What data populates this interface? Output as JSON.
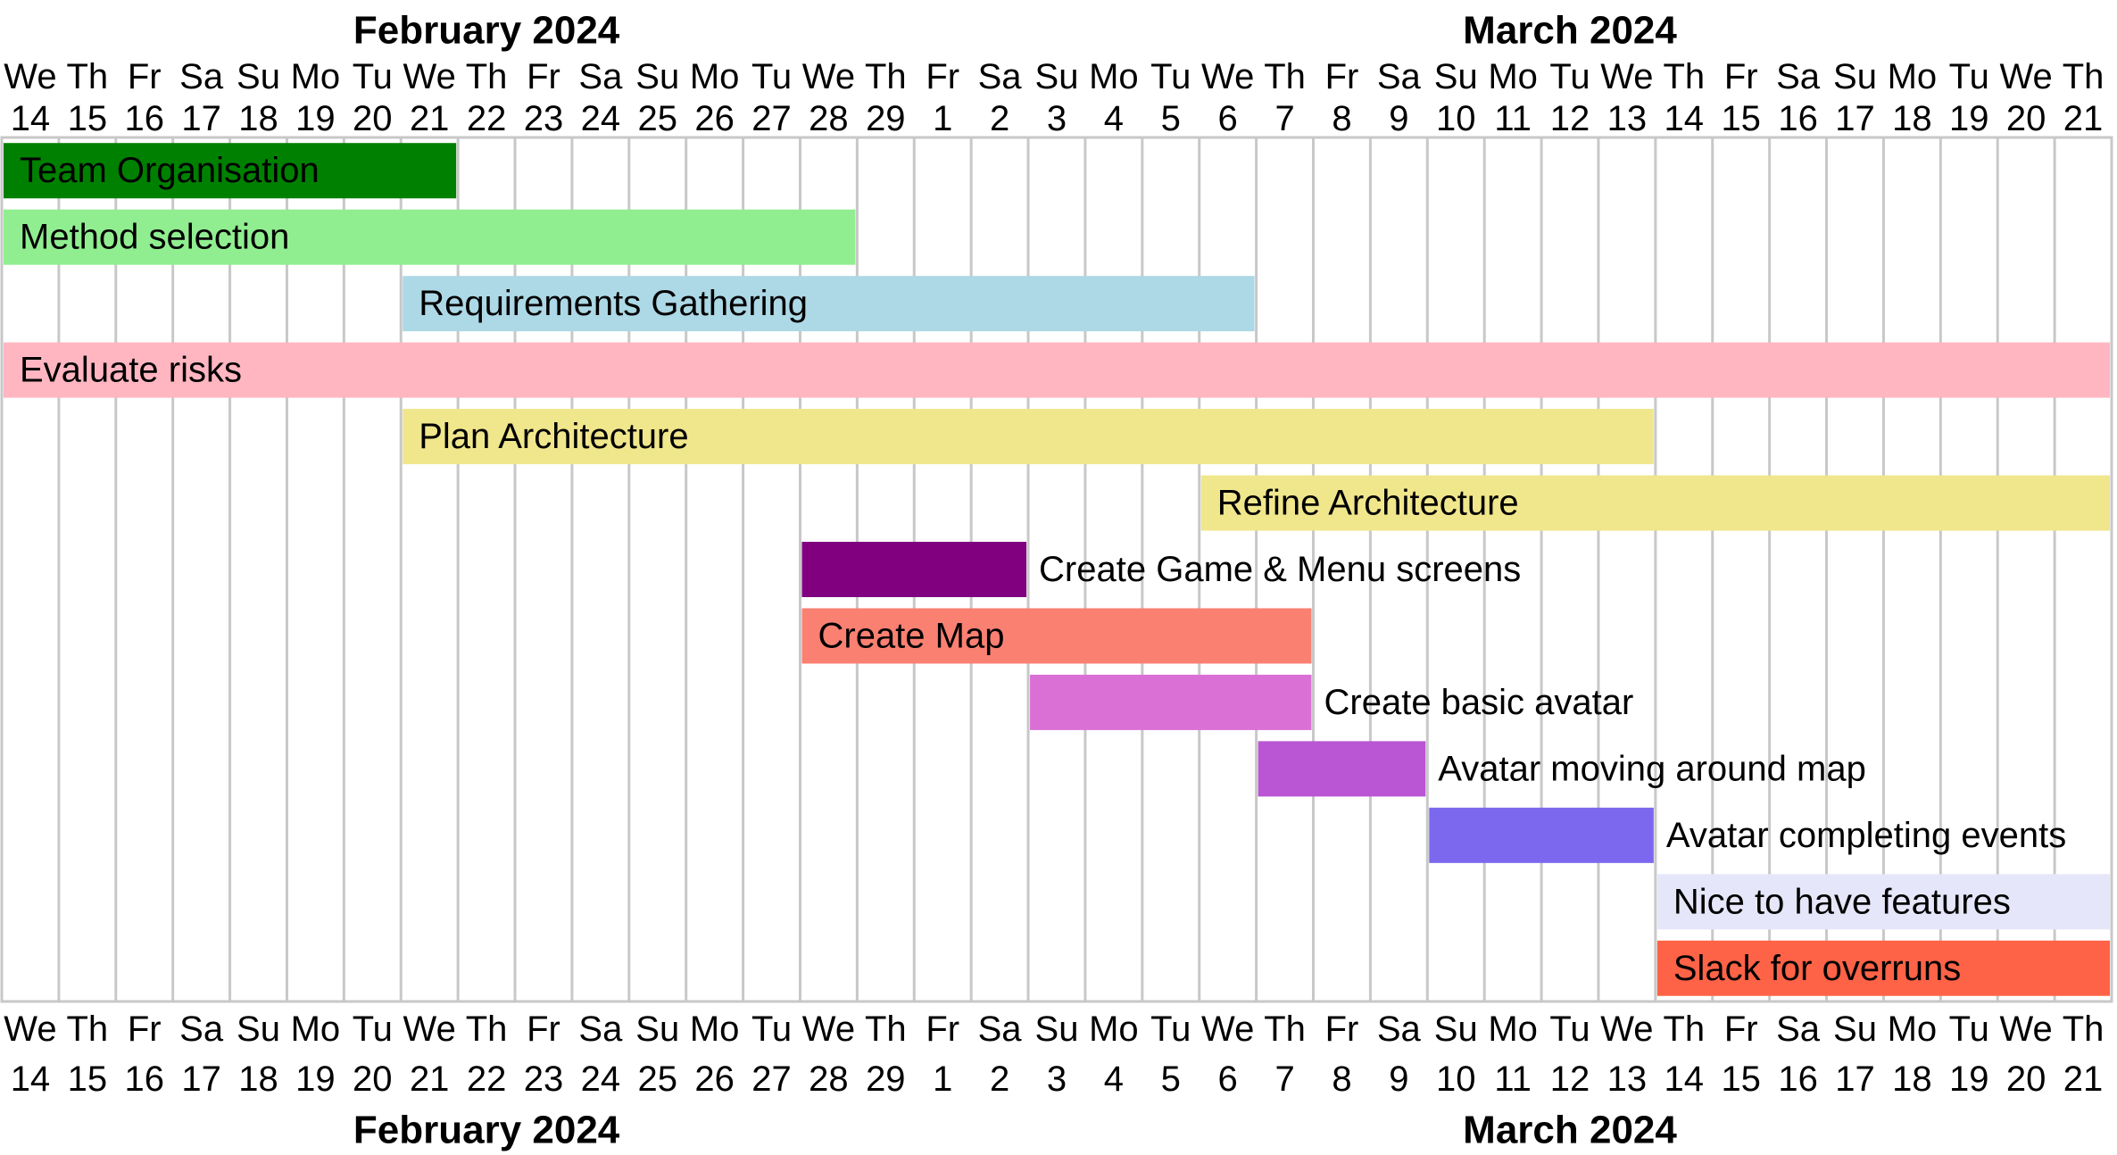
{
  "chart_data": {
    "type": "gantt",
    "months": [
      {
        "label": "February 2024",
        "center_day": 8
      },
      {
        "label": "March 2024",
        "center_day": 27
      }
    ],
    "weekdays": [
      "We",
      "Th",
      "Fr",
      "Sa",
      "Su",
      "Mo",
      "Tu",
      "We",
      "Th",
      "Fr",
      "Sa",
      "Su",
      "Mo",
      "Tu",
      "We",
      "Th",
      "Fr",
      "Sa",
      "Su",
      "Mo",
      "Tu",
      "We",
      "Th",
      "Fr",
      "Sa",
      "Su",
      "Mo",
      "Tu",
      "We",
      "Th",
      "Fr",
      "Sa",
      "Su",
      "Mo",
      "Tu",
      "We",
      "Th"
    ],
    "days": [
      "14",
      "15",
      "16",
      "17",
      "18",
      "19",
      "20",
      "21",
      "22",
      "23",
      "24",
      "25",
      "26",
      "27",
      "28",
      "29",
      "1",
      "2",
      "3",
      "4",
      "5",
      "6",
      "7",
      "8",
      "9",
      "10",
      "11",
      "12",
      "13",
      "14",
      "15",
      "16",
      "17",
      "18",
      "19",
      "20",
      "21"
    ],
    "tasks": [
      {
        "name": "Team Organisation",
        "start": "2024-02-14",
        "end": "2024-02-21",
        "color": "#008000",
        "label_position": "inside"
      },
      {
        "name": "Method selection",
        "start": "2024-02-14",
        "end": "2024-02-28",
        "color": "#90EE90",
        "label_position": "inside"
      },
      {
        "name": "Requirements Gathering",
        "start": "2024-02-21",
        "end": "2024-03-06",
        "color": "#ADD8E6",
        "label_position": "inside"
      },
      {
        "name": "Evaluate risks",
        "start": "2024-02-14",
        "end": "2024-03-21",
        "color": "#FFB6C1",
        "label_position": "inside"
      },
      {
        "name": "Plan Architecture",
        "start": "2024-02-21",
        "end": "2024-03-13",
        "color": "#F0E68C",
        "label_position": "inside"
      },
      {
        "name": "Refine Architecture",
        "start": "2024-03-06",
        "end": "2024-03-21",
        "color": "#F0E68C",
        "label_position": "inside"
      },
      {
        "name": "Create Game & Menu screens",
        "start": "2024-02-28",
        "end": "2024-03-02",
        "color": "#800080",
        "label_position": "right"
      },
      {
        "name": "Create Map",
        "start": "2024-02-28",
        "end": "2024-03-07",
        "color": "#FA8072",
        "label_position": "inside"
      },
      {
        "name": "Create basic avatar",
        "start": "2024-03-03",
        "end": "2024-03-07",
        "color": "#DA70D6",
        "label_position": "right"
      },
      {
        "name": "Avatar moving around map",
        "start": "2024-03-07",
        "end": "2024-03-09",
        "color": "#BA55D3",
        "label_position": "right"
      },
      {
        "name": "Avatar completing events",
        "start": "2024-03-10",
        "end": "2024-03-13",
        "color": "#7B68EE",
        "label_position": "right"
      },
      {
        "name": "Nice to have features",
        "start": "2024-03-14",
        "end": "2024-03-21",
        "color": "#E6E6FA",
        "label_position": "inside"
      },
      {
        "name": "Slack for overruns",
        "start": "2024-03-14",
        "end": "2024-03-21",
        "color": "#FF6347",
        "label_position": "inside"
      }
    ]
  }
}
